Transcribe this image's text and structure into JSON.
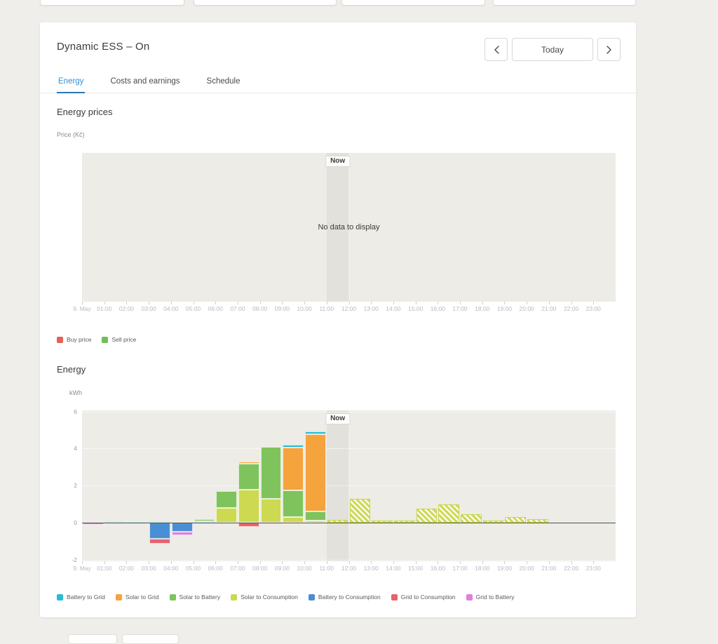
{
  "header": {
    "title": "Dynamic ESS – On",
    "today_label": "Today"
  },
  "tabs": [
    {
      "label": "Energy",
      "active": true
    },
    {
      "label": "Costs and earnings",
      "active": false
    },
    {
      "label": "Schedule",
      "active": false
    }
  ],
  "price_section": {
    "heading": "Energy prices",
    "axis_label": "Price (Kč)",
    "now_label": "Now",
    "no_data": "No data to display",
    "legend": [
      {
        "label": "Buy price",
        "color": "#e4605c"
      },
      {
        "label": "Sell price",
        "color": "#70bf56"
      }
    ]
  },
  "energy_section": {
    "heading": "Energy",
    "axis_label": "kWh",
    "now_label": "Now"
  },
  "x_labels": [
    "9. May",
    "01:00",
    "02:00",
    "03:00",
    "04:00",
    "05:00",
    "06:00",
    "07:00",
    "08:00",
    "09:00",
    "10:00",
    "11:00",
    "12:00",
    "13:00",
    "14:00",
    "15:00",
    "16:00",
    "17:00",
    "18:00",
    "19:00",
    "20:00",
    "21:00",
    "22:00",
    "23:00"
  ],
  "chart_data": [
    {
      "type": "line",
      "title": "Energy prices",
      "ylabel": "Price (Kč)",
      "x_categories": [
        "9. May",
        "01:00",
        "02:00",
        "03:00",
        "04:00",
        "05:00",
        "06:00",
        "07:00",
        "08:00",
        "09:00",
        "10:00",
        "11:00",
        "12:00",
        "13:00",
        "14:00",
        "15:00",
        "16:00",
        "17:00",
        "18:00",
        "19:00",
        "20:00",
        "21:00",
        "22:00",
        "23:00"
      ],
      "series": [
        {
          "name": "Buy price",
          "color": "#e4605c",
          "values": []
        },
        {
          "name": "Sell price",
          "color": "#70bf56",
          "values": []
        }
      ],
      "annotations": {
        "no_data": "No data to display",
        "now_span": [
          "11:00",
          "12:00"
        ]
      },
      "grid": false,
      "legend_position": "bottom-left"
    },
    {
      "type": "bar",
      "stacked": true,
      "title": "Energy",
      "ylabel": "kWh",
      "ylim": [
        -2.07,
        6.06
      ],
      "yticks": [
        6,
        4,
        2,
        0,
        -2
      ],
      "x_categories": [
        "9. May",
        "01:00",
        "02:00",
        "03:00",
        "04:00",
        "05:00",
        "06:00",
        "07:00",
        "08:00",
        "09:00",
        "10:00",
        "11:00",
        "12:00",
        "13:00",
        "14:00",
        "15:00",
        "16:00",
        "17:00",
        "18:00",
        "19:00",
        "20:00",
        "21:00",
        "22:00",
        "23:00"
      ],
      "now_span": [
        "11:00",
        "12:00"
      ],
      "legend_position": "bottom-left",
      "series_defs": [
        {
          "key": "battery_to_grid",
          "name": "Battery to Grid",
          "color": "#27bdd4"
        },
        {
          "key": "solar_to_grid",
          "name": "Solar to Grid",
          "color": "#f5a33c"
        },
        {
          "key": "solar_to_battery",
          "name": "Solar to Battery",
          "color": "#7fc35c"
        },
        {
          "key": "solar_to_consumption",
          "name": "Solar to Consumption",
          "color": "#cdd950"
        },
        {
          "key": "battery_to_consumption",
          "name": "Battery to Consumption",
          "color": "#4a8fd3"
        },
        {
          "key": "grid_to_consumption",
          "name": "Grid to Consumption",
          "color": "#e7626d"
        },
        {
          "key": "grid_to_battery",
          "name": "Grid to Battery",
          "color": "#e07ee0"
        }
      ],
      "bars": [
        {
          "x": "9. May",
          "forecast": false,
          "segments": [
            {
              "series": "grid_to_battery",
              "value": -0.1
            }
          ]
        },
        {
          "x": "01:00",
          "forecast": false,
          "segments": [
            {
              "series": "battery_to_grid",
              "value": 0.08
            },
            {
              "series": "grid_to_battery",
              "value": -0.08
            }
          ]
        },
        {
          "x": "02:00",
          "forecast": false,
          "segments": [
            {
              "series": "battery_to_grid",
              "value": 0.06
            },
            {
              "series": "grid_to_battery",
              "value": -0.08
            }
          ]
        },
        {
          "x": "03:00",
          "forecast": false,
          "segments": [
            {
              "series": "battery_to_grid",
              "value": 0.1
            },
            {
              "series": "battery_to_consumption",
              "value": -0.85
            },
            {
              "series": "grid_to_consumption",
              "value": -0.27
            }
          ]
        },
        {
          "x": "04:00",
          "forecast": false,
          "segments": [
            {
              "series": "battery_to_consumption",
              "value": -0.5
            },
            {
              "series": "grid_to_battery",
              "value": -0.17
            }
          ]
        },
        {
          "x": "05:00",
          "forecast": false,
          "segments": [
            {
              "series": "battery_to_grid",
              "value": 0.08
            },
            {
              "series": "solar_to_battery",
              "value": 0.1
            },
            {
              "series": "grid_to_battery",
              "value": -0.08
            }
          ]
        },
        {
          "x": "06:00",
          "forecast": false,
          "segments": [
            {
              "series": "solar_to_consumption",
              "value": 0.8
            },
            {
              "series": "solar_to_battery",
              "value": 0.9
            },
            {
              "series": "grid_to_battery",
              "value": -0.08
            }
          ]
        },
        {
          "x": "07:00",
          "forecast": false,
          "segments": [
            {
              "series": "solar_to_consumption",
              "value": 1.8
            },
            {
              "series": "solar_to_battery",
              "value": 1.4
            },
            {
              "series": "solar_to_grid",
              "value": 0.1
            },
            {
              "series": "grid_to_consumption",
              "value": -0.2
            }
          ]
        },
        {
          "x": "08:00",
          "forecast": false,
          "segments": [
            {
              "series": "solar_to_consumption",
              "value": 1.3
            },
            {
              "series": "solar_to_battery",
              "value": 2.8
            },
            {
              "series": "grid_to_consumption",
              "value": -0.07
            }
          ]
        },
        {
          "x": "09:00",
          "forecast": false,
          "segments": [
            {
              "series": "solar_to_consumption",
              "value": 0.3
            },
            {
              "series": "solar_to_battery",
              "value": 1.45
            },
            {
              "series": "solar_to_grid",
              "value": 2.3
            },
            {
              "series": "battery_to_grid",
              "value": 0.15
            }
          ]
        },
        {
          "x": "10:00",
          "forecast": false,
          "segments": [
            {
              "series": "solar_to_consumption",
              "value": 0.12
            },
            {
              "series": "solar_to_battery",
              "value": 0.5
            },
            {
              "series": "solar_to_grid",
              "value": 4.15
            },
            {
              "series": "battery_to_grid",
              "value": 0.15
            }
          ]
        },
        {
          "x": "11:00",
          "forecast": true,
          "segments": [
            {
              "series": "solar_to_consumption",
              "value": 0.15
            }
          ]
        },
        {
          "x": "12:00",
          "forecast": true,
          "segments": [
            {
              "series": "solar_to_consumption",
              "value": 1.3
            }
          ]
        },
        {
          "x": "13:00",
          "forecast": true,
          "segments": [
            {
              "series": "solar_to_consumption",
              "value": 0.12
            }
          ]
        },
        {
          "x": "14:00",
          "forecast": true,
          "segments": [
            {
              "series": "solar_to_consumption",
              "value": 0.12
            }
          ]
        },
        {
          "x": "15:00",
          "forecast": true,
          "segments": [
            {
              "series": "solar_to_consumption",
              "value": 0.75
            }
          ]
        },
        {
          "x": "16:00",
          "forecast": true,
          "segments": [
            {
              "series": "solar_to_consumption",
              "value": 1.0
            }
          ]
        },
        {
          "x": "17:00",
          "forecast": true,
          "segments": [
            {
              "series": "solar_to_consumption",
              "value": 0.45
            }
          ]
        },
        {
          "x": "18:00",
          "forecast": true,
          "segments": [
            {
              "series": "solar_to_consumption",
              "value": 0.13
            }
          ]
        },
        {
          "x": "19:00",
          "forecast": true,
          "segments": [
            {
              "series": "solar_to_consumption",
              "value": 0.3
            }
          ]
        },
        {
          "x": "20:00",
          "forecast": true,
          "segments": [
            {
              "series": "solar_to_consumption",
              "value": 0.2
            }
          ]
        },
        {
          "x": "21:00",
          "forecast": false,
          "segments": []
        },
        {
          "x": "22:00",
          "forecast": false,
          "segments": []
        },
        {
          "x": "23:00",
          "forecast": false,
          "segments": []
        }
      ]
    }
  ]
}
